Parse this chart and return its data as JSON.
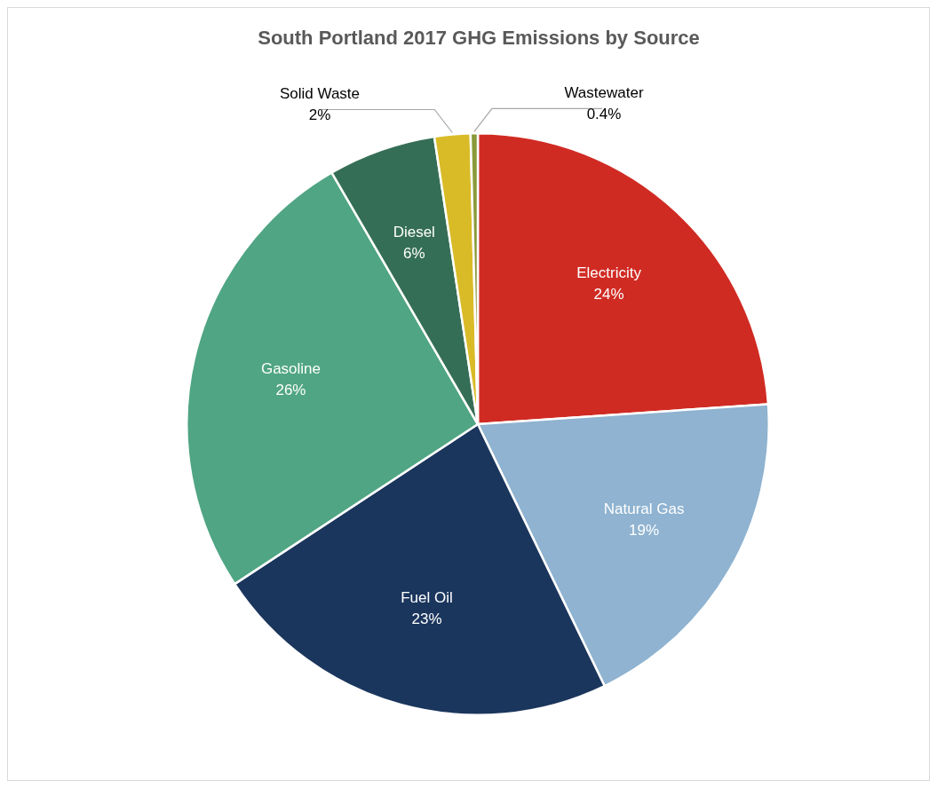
{
  "chart_data": {
    "type": "pie",
    "title": "South Portland 2017 GHG Emissions by Source",
    "categories": [
      "Electricity",
      "Natural Gas",
      "Fuel Oil",
      "Gasoline",
      "Diesel",
      "Solid Waste",
      "Wastewater"
    ],
    "values": [
      24,
      19,
      23,
      26,
      6,
      2,
      0.4
    ],
    "value_labels": [
      "24%",
      "19%",
      "23%",
      "26%",
      "6%",
      "2%",
      "0.4%"
    ],
    "colors": [
      "#d02b23",
      "#8fb3d0",
      "#1b365d",
      "#50a584",
      "#356e56",
      "#d9bb28",
      "#8a9a3a"
    ],
    "legend": false
  }
}
